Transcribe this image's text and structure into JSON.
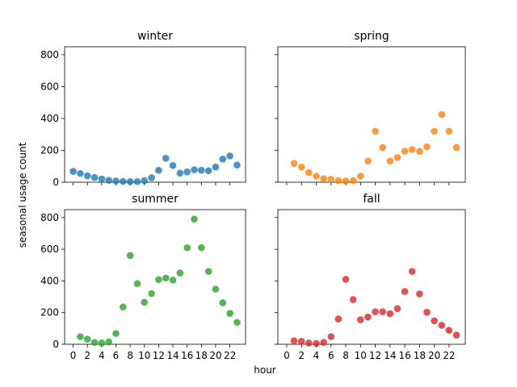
{
  "chart_data": {
    "type": "scatter",
    "xlabel": "hour",
    "ylabel": "seasonal usage count",
    "ylim": [
      0,
      850
    ],
    "xlim": [
      -1.2,
      24.2
    ],
    "x_ticks": [
      0,
      2,
      4,
      6,
      8,
      10,
      12,
      14,
      16,
      18,
      20,
      22
    ],
    "y_ticks": [
      0,
      200,
      400,
      600,
      800
    ],
    "panels": [
      {
        "title": "winter",
        "color": "#1f77b4",
        "x": [
          0,
          1,
          2,
          3,
          4,
          5,
          6,
          7,
          8,
          9,
          10,
          11,
          12,
          13,
          14,
          15,
          16,
          17,
          18,
          19,
          20,
          21,
          22,
          23
        ],
        "values": [
          68,
          55,
          40,
          30,
          20,
          12,
          8,
          5,
          4,
          4,
          10,
          28,
          75,
          150,
          105,
          57,
          65,
          78,
          75,
          72,
          95,
          145,
          165,
          108
        ]
      },
      {
        "title": "spring",
        "color": "#ff7f0e",
        "x": [
          1,
          2,
          3,
          4,
          5,
          6,
          7,
          8,
          9,
          10,
          11,
          12,
          13,
          14,
          15,
          16,
          17,
          18,
          19,
          20,
          21,
          22,
          23
        ],
        "values": [
          118,
          95,
          60,
          38,
          22,
          18,
          10,
          8,
          10,
          38,
          133,
          320,
          218,
          133,
          155,
          195,
          205,
          193,
          222,
          320,
          425,
          320,
          218
        ]
      },
      {
        "title": "summer",
        "color": "#2ca02c",
        "x": [
          1,
          2,
          3,
          4,
          5,
          6,
          7,
          8,
          9,
          10,
          11,
          12,
          13,
          14,
          15,
          16,
          17,
          18,
          19,
          20,
          21,
          22,
          23
        ],
        "values": [
          48,
          32,
          12,
          8,
          15,
          68,
          235,
          560,
          383,
          265,
          320,
          408,
          418,
          405,
          450,
          610,
          790,
          610,
          460,
          348,
          262,
          195,
          138
        ]
      },
      {
        "title": "fall",
        "color": "#d62728",
        "x": [
          1,
          2,
          3,
          4,
          5,
          6,
          7,
          8,
          9,
          10,
          11,
          12,
          13,
          14,
          15,
          16,
          17,
          18,
          19,
          20,
          21,
          22,
          23
        ],
        "values": [
          22,
          18,
          8,
          5,
          12,
          48,
          160,
          410,
          282,
          155,
          172,
          205,
          205,
          193,
          225,
          333,
          460,
          318,
          202,
          148,
          120,
          88,
          58
        ]
      }
    ]
  }
}
